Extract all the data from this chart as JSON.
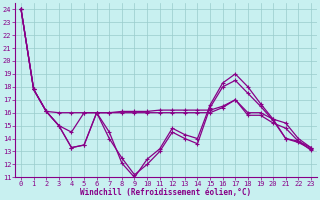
{
  "xlabel": "Windchill (Refroidissement éolien,°C)",
  "background_color": "#c8f0f0",
  "line_color": "#880088",
  "grid_color": "#99cccc",
  "xlim": [
    -0.5,
    23.5
  ],
  "ylim": [
    11,
    24.5
  ],
  "yticks": [
    11,
    12,
    13,
    14,
    15,
    16,
    17,
    18,
    19,
    20,
    21,
    22,
    23,
    24
  ],
  "xticks": [
    0,
    1,
    2,
    3,
    4,
    5,
    6,
    7,
    8,
    9,
    10,
    11,
    12,
    13,
    14,
    15,
    16,
    17,
    18,
    19,
    20,
    21,
    22,
    23
  ],
  "series": [
    [
      24.0,
      17.8,
      16.1,
      15.0,
      13.3,
      13.5,
      16.0,
      14.5,
      12.1,
      11.0,
      12.4,
      13.2,
      14.8,
      14.3,
      14.0,
      16.6,
      18.3,
      19.0,
      18.0,
      16.7,
      15.5,
      14.0,
      13.8,
      13.3
    ],
    [
      24.0,
      17.8,
      16.1,
      15.0,
      14.5,
      16.0,
      16.0,
      16.0,
      16.1,
      16.1,
      16.1,
      16.2,
      16.2,
      16.2,
      16.2,
      16.2,
      16.5,
      17.0,
      16.0,
      16.0,
      15.5,
      15.2,
      14.0,
      13.3
    ],
    [
      24.0,
      17.8,
      16.1,
      15.0,
      13.3,
      13.5,
      16.0,
      14.0,
      12.5,
      11.2,
      12.0,
      13.0,
      14.5,
      14.0,
      13.6,
      16.4,
      18.0,
      18.5,
      17.5,
      16.5,
      15.4,
      14.0,
      13.7,
      13.2
    ],
    [
      24.0,
      17.8,
      16.1,
      16.0,
      16.0,
      16.0,
      16.0,
      16.0,
      16.0,
      16.0,
      16.0,
      16.0,
      16.0,
      16.0,
      16.0,
      16.0,
      16.4,
      17.0,
      15.8,
      15.8,
      15.2,
      14.8,
      13.8,
      13.1
    ]
  ]
}
